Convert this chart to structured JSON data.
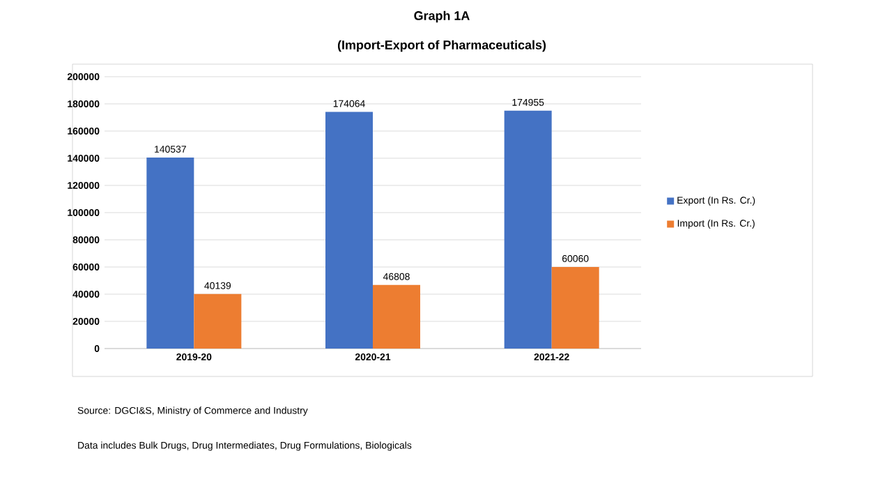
{
  "chart_data": {
    "type": "bar",
    "title": "Graph 1A",
    "subtitle": "(Import-Export of Pharmaceuticals)",
    "categories": [
      "2019-20",
      "2020-21",
      "2021-22"
    ],
    "series": [
      {
        "name": "Export (In Rs. Cr.)",
        "color": "#4472c4",
        "values": [
          140537,
          174064,
          174955
        ]
      },
      {
        "name": "Import (In Rs. Cr.)",
        "color": "#ed7d31",
        "values": [
          40139,
          46808,
          60060
        ]
      }
    ],
    "ylim": [
      0,
      200000
    ],
    "yticks": [
      0,
      20000,
      40000,
      60000,
      80000,
      100000,
      120000,
      140000,
      160000,
      180000,
      200000
    ],
    "grid": "y",
    "legend": "right",
    "data_labels": true,
    "annotations": [
      "Source: DGCI&S, Ministry of Commerce and Industry",
      "Data includes Bulk Drugs, Drug Intermediates, Drug Formulations, Biologicals"
    ]
  }
}
